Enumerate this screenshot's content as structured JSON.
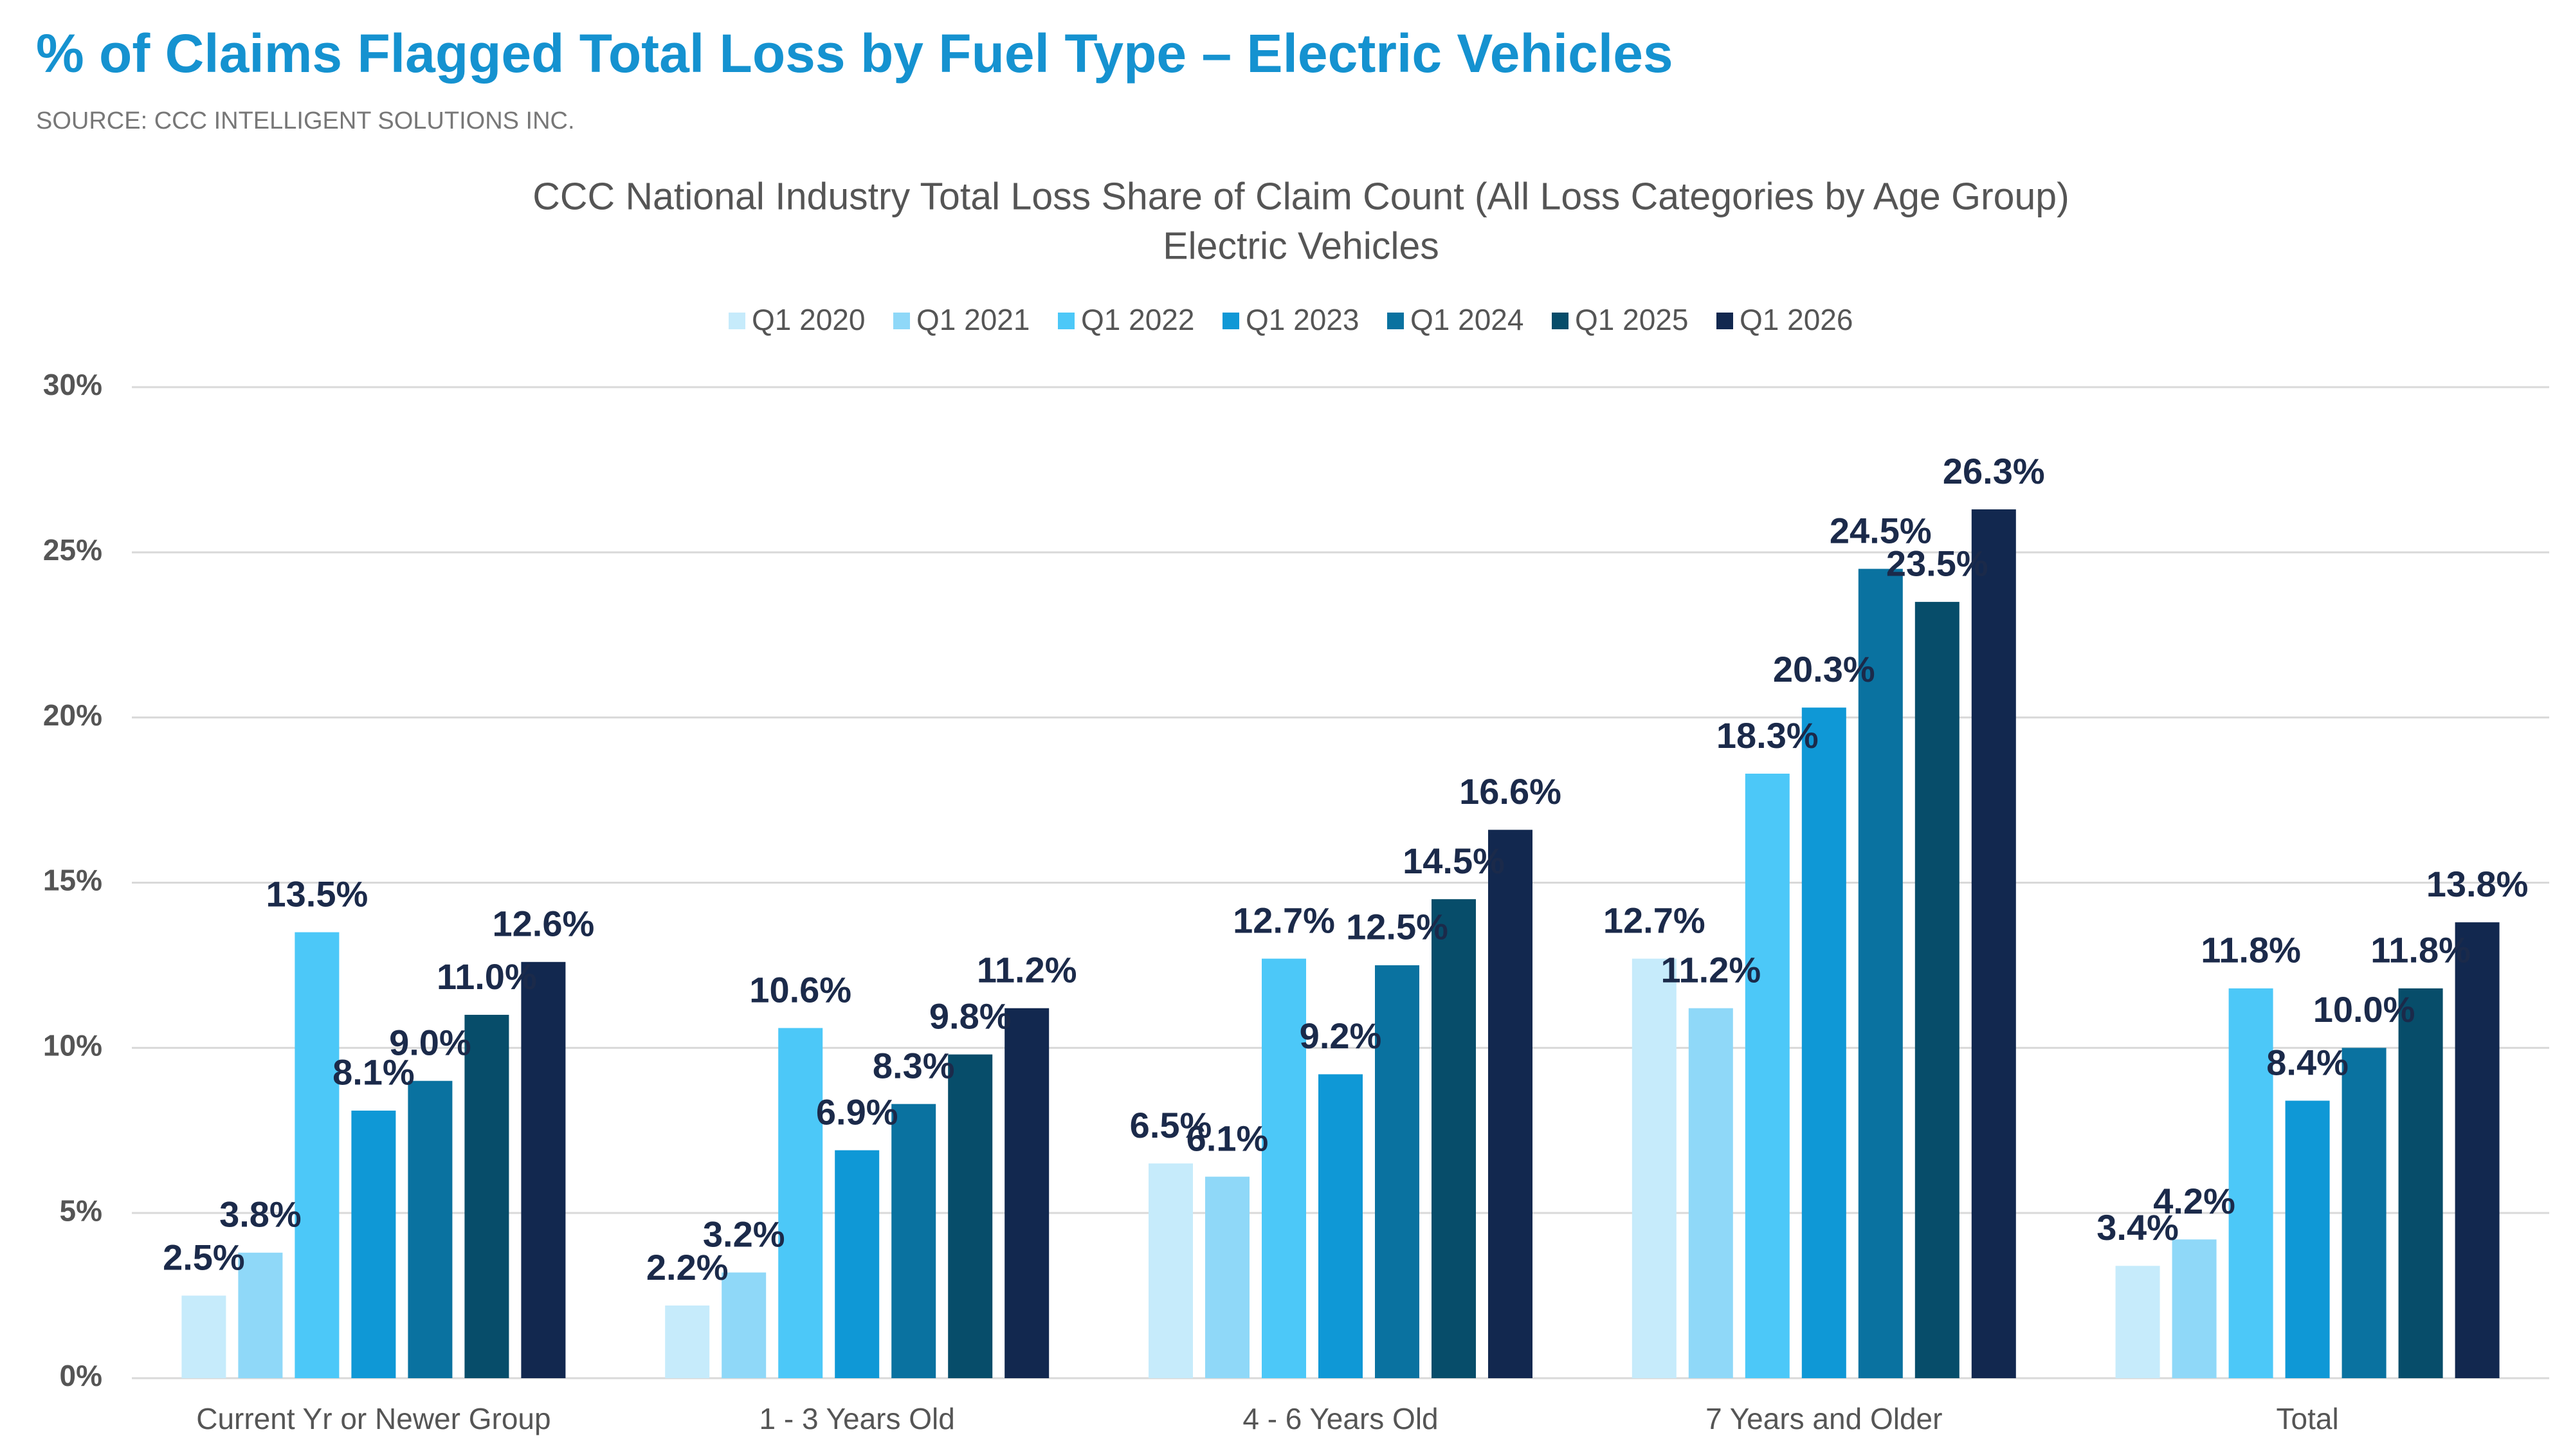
{
  "chart_data": {
    "type": "bar",
    "title": "% of Claims Flagged Total Loss by Fuel Type – Electric Vehicles",
    "source": "SOURCE: CCC INTELLIGENT SOLUTIONS INC.",
    "subtitle": [
      "CCC National Industry Total Loss Share of Claim Count (All Loss Categories by Age Group)",
      "Electric Vehicles"
    ],
    "categories": [
      "Current Yr or Newer Group",
      "1 - 3 Years Old",
      "4 - 6 Years Old",
      "7 Years and Older",
      "Total"
    ],
    "series": [
      {
        "name": "Q1 2020",
        "color": "#c6ebfb",
        "values": [
          2.5,
          2.2,
          6.5,
          12.7,
          3.4
        ],
        "value_labels": [
          "2.5%",
          "2.2%",
          "6.5%",
          "12.7%",
          "3.4%"
        ]
      },
      {
        "name": "Q1 2021",
        "color": "#8fd8f8",
        "values": [
          3.8,
          3.2,
          6.1,
          11.2,
          4.2
        ],
        "value_labels": [
          "3.8%",
          "3.2%",
          "6.1%",
          "11.2%",
          "4.2%"
        ]
      },
      {
        "name": "Q1 2022",
        "color": "#4cc8f8",
        "values": [
          13.5,
          10.6,
          12.7,
          18.3,
          11.8
        ],
        "value_labels": [
          "13.5%",
          "10.6%",
          "12.7%",
          "18.3%",
          "11.8%"
        ]
      },
      {
        "name": "Q1 2023",
        "color": "#0f98d6",
        "values": [
          8.1,
          6.9,
          9.2,
          20.3,
          8.4
        ],
        "value_labels": [
          "8.1%",
          "6.9%",
          "9.2%",
          "20.3%",
          "8.4%"
        ]
      },
      {
        "name": "Q1 2024",
        "color": "#0a72a0",
        "values": [
          9.0,
          8.3,
          12.5,
          24.5,
          10.0
        ],
        "value_labels": [
          "9.0%",
          "8.3%",
          "12.5%",
          "24.5%",
          "10.0%"
        ]
      },
      {
        "name": "Q1 2025",
        "color": "#074d6a",
        "values": [
          11.0,
          9.8,
          14.5,
          23.5,
          11.8
        ],
        "value_labels": [
          "11.0%",
          "9.8%",
          "14.5%",
          "23.5%",
          "11.8%"
        ]
      },
      {
        "name": "Q1 2026",
        "color": "#12284f",
        "values": [
          12.6,
          11.2,
          16.6,
          26.3,
          13.8
        ],
        "value_labels": [
          "12.6%",
          "11.2%",
          "16.6%",
          "26.3%",
          "13.8%"
        ]
      }
    ],
    "ylim": [
      0,
      30
    ],
    "yticks": [
      {
        "value": 0,
        "label": "0%"
      },
      {
        "value": 5,
        "label": "5%"
      },
      {
        "value": 10,
        "label": "10%"
      },
      {
        "value": 15,
        "label": "15%"
      },
      {
        "value": 20,
        "label": "20%"
      },
      {
        "value": 25,
        "label": "25%"
      },
      {
        "value": 30,
        "label": "30%"
      }
    ],
    "grid": true,
    "legend": "top"
  }
}
